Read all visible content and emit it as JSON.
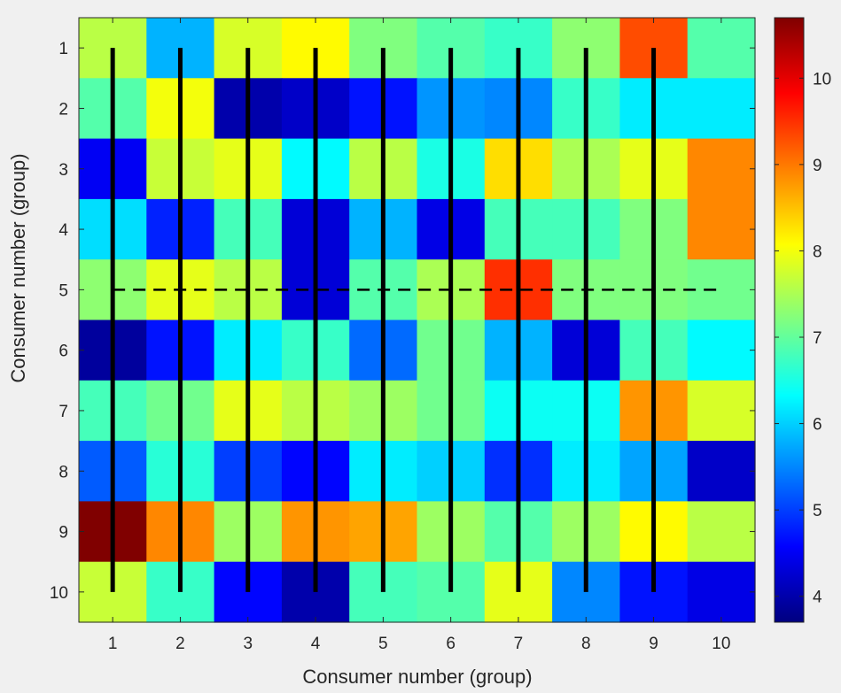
{
  "chart_data": {
    "type": "heatmap",
    "title": "",
    "xlabel": "Consumer number (group)",
    "ylabel": "Consumer number (group)",
    "x_ticks": [
      "1",
      "2",
      "3",
      "4",
      "5",
      "6",
      "7",
      "8",
      "9",
      "10"
    ],
    "y_ticks": [
      "1",
      "2",
      "3",
      "4",
      "5",
      "6",
      "7",
      "8",
      "9",
      "10"
    ],
    "colormap": "jet",
    "clim": [
      3.7,
      10.7
    ],
    "colorbar_ticks": [
      "4",
      "5",
      "6",
      "7",
      "8",
      "9",
      "10"
    ],
    "values": [
      [
        7.6,
        5.8,
        7.8,
        8.1,
        7.2,
        6.9,
        6.7,
        7.3,
        9.3,
        6.9
      ],
      [
        6.9,
        8.0,
        4.0,
        4.2,
        4.7,
        5.6,
        5.5,
        6.7,
        6.2,
        6.2
      ],
      [
        4.5,
        7.7,
        7.9,
        6.3,
        7.6,
        6.5,
        8.3,
        7.5,
        7.9,
        8.9
      ],
      [
        6.1,
        4.8,
        6.8,
        4.3,
        5.8,
        4.4,
        6.8,
        6.8,
        7.2,
        8.9
      ],
      [
        7.3,
        7.9,
        7.6,
        4.3,
        6.9,
        7.5,
        9.5,
        7.2,
        7.2,
        7.1
      ],
      [
        3.9,
        4.7,
        6.2,
        6.7,
        5.3,
        7.1,
        5.8,
        4.3,
        6.8,
        6.3
      ],
      [
        6.8,
        7.1,
        7.9,
        7.6,
        7.4,
        7.1,
        6.4,
        6.4,
        8.8,
        7.8
      ],
      [
        5.2,
        6.6,
        5.0,
        4.6,
        6.2,
        6.0,
        4.9,
        6.2,
        5.7,
        4.2
      ],
      [
        10.7,
        8.9,
        7.4,
        8.8,
        8.7,
        7.4,
        6.9,
        7.4,
        8.1,
        7.6
      ],
      [
        7.7,
        6.7,
        4.6,
        4.0,
        6.8,
        6.9,
        7.9,
        5.5,
        4.7,
        4.4
      ]
    ],
    "overlay": {
      "solid_vertical_lines_x": [
        1,
        2,
        3,
        4,
        5,
        6,
        7,
        8,
        9
      ],
      "solid_vertical_lines_y_range": [
        1,
        10
      ],
      "dashed_horizontal_line_y": 5,
      "dashed_horizontal_line_x_range": [
        1,
        10
      ],
      "color": "#000000"
    },
    "grid": false,
    "legend": "colorbar-right"
  }
}
